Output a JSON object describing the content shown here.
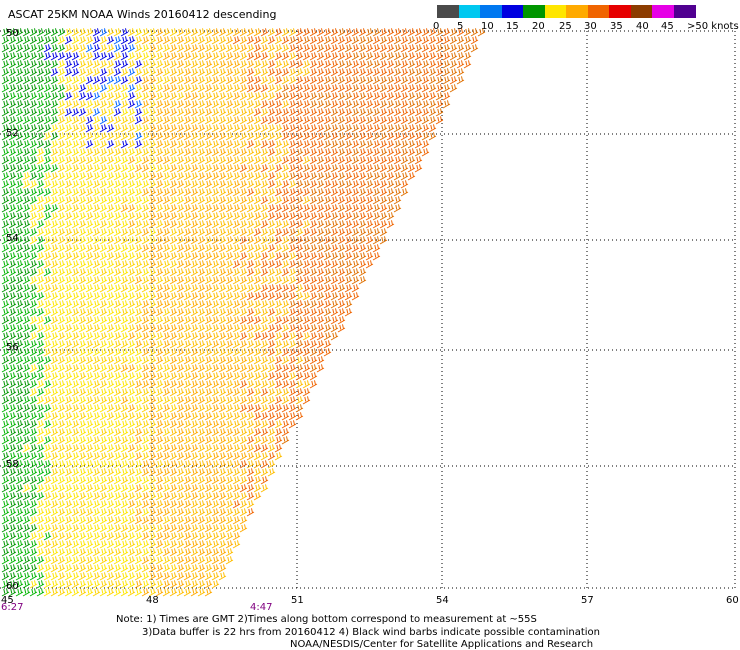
{
  "title": "ASCAT 25KM NOAA Winds 20160412 descending",
  "legend": {
    "colors": [
      "#4a4a4a",
      "#00c8f0",
      "#0078f0",
      "#0000e0",
      "#009600",
      "#ffe600",
      "#ffaa00",
      "#f06400",
      "#e60000",
      "#8c3c00",
      "#e600e6",
      "#500090"
    ],
    "labels": [
      "0",
      "5",
      "10",
      "15",
      "20",
      "25",
      "30",
      "35",
      "40",
      "45",
      ">50 knots"
    ]
  },
  "axes": {
    "x_ticks": [
      "45",
      "48",
      "51",
      "54",
      "57",
      "60"
    ],
    "y_ticks": [
      "50",
      "52",
      "54",
      "56",
      "58",
      "60"
    ]
  },
  "times": [
    "6:27",
    "4:47"
  ],
  "notes": [
    "Note: 1) Times are GMT 2)Times along bottom correspond to measurement at ~55S",
    "3)Data buffer is 22 hrs from 20160412 4) Black wind barbs indicate possible contamination",
    "NOAA/NESDIS/Center for Satellite Applications and Research"
  ]
}
